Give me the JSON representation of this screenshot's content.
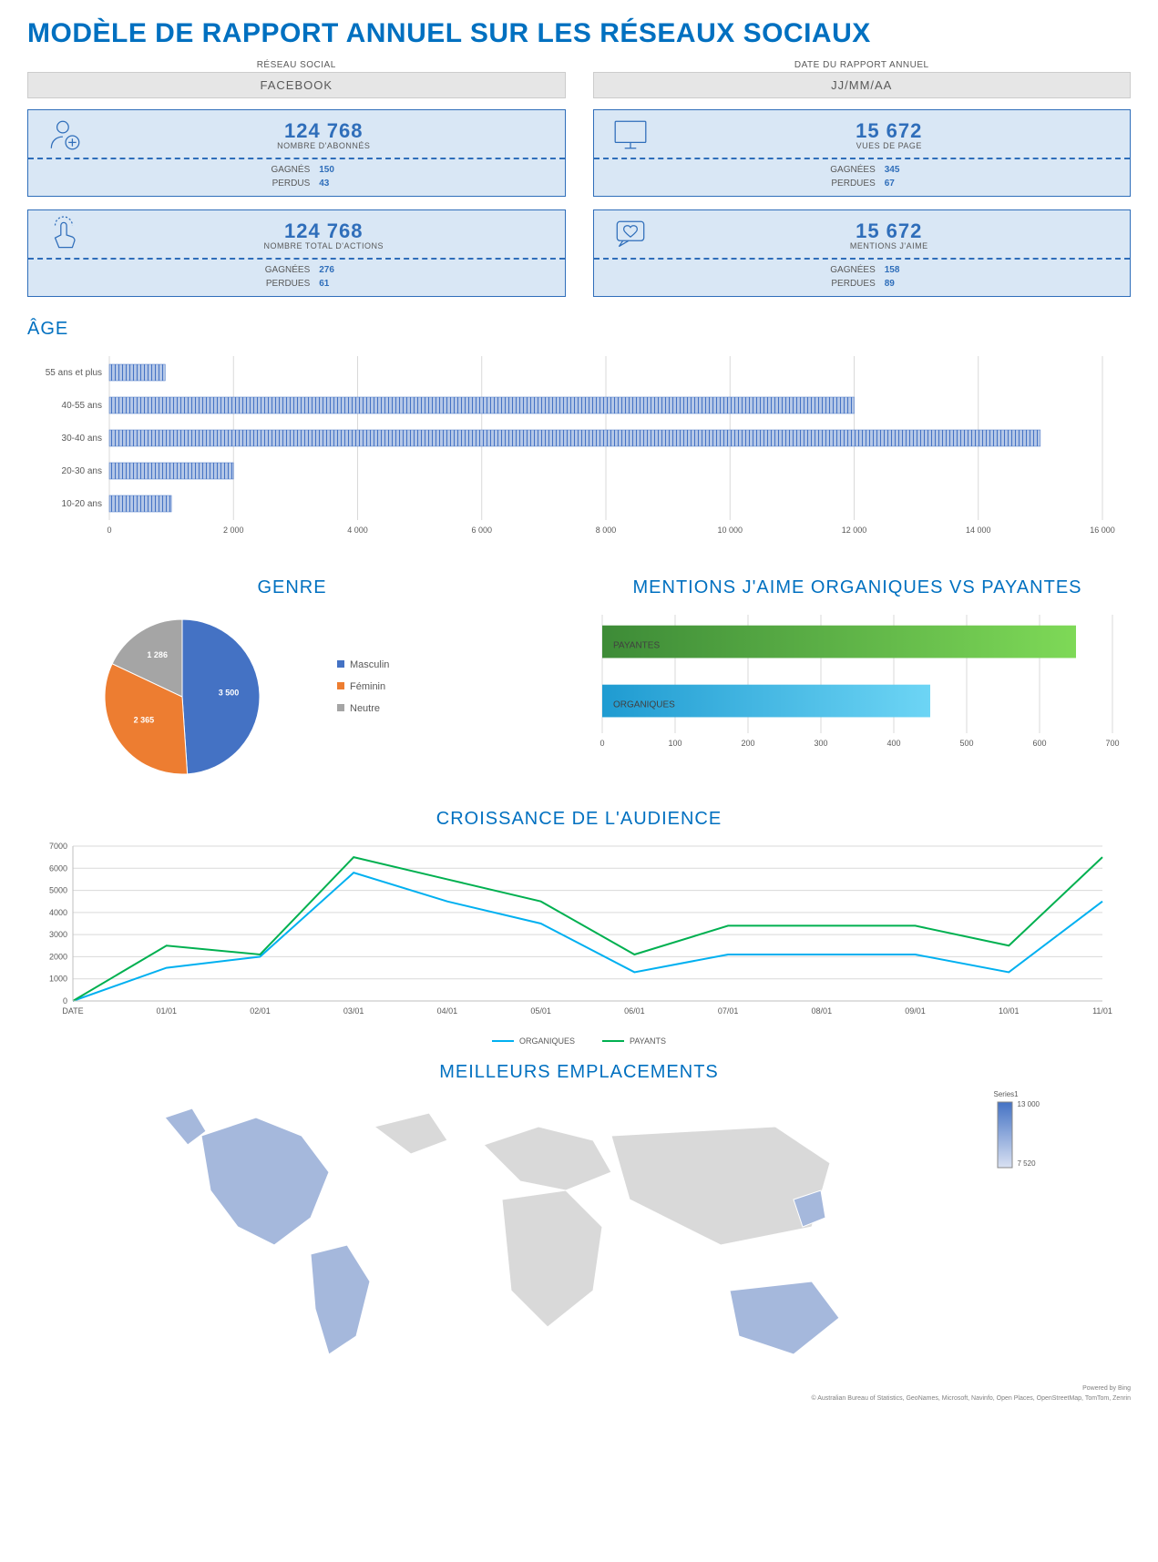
{
  "title": "MODÈLE DE RAPPORT ANNUEL SUR LES RÉSEAUX SOCIAUX",
  "header": {
    "network_label": "RÉSEAU SOCIAL",
    "network_value": "FACEBOOK",
    "date_label": "DATE DU RAPPORT ANNUEL",
    "date_value": "JJ/MM/AA"
  },
  "metrics": {
    "followers": {
      "value": "124 768",
      "label": "NOMBRE D'ABONNÉS",
      "gained_label": "GAGNÉS",
      "gained": "150",
      "lost_label": "PERDUS",
      "lost": "43"
    },
    "pageviews": {
      "value": "15 672",
      "label": "VUES DE PAGE",
      "gained_label": "GAGNÉES",
      "gained": "345",
      "lost_label": "PERDUES",
      "lost": "67"
    },
    "actions": {
      "value": "124 768",
      "label": "NOMBRE TOTAL D'ACTIONS",
      "gained_label": "GAGNÉES",
      "gained": "276",
      "lost_label": "PERDUES",
      "lost": "61"
    },
    "likes": {
      "value": "15 672",
      "label": "MENTIONS J'AIME",
      "gained_label": "GAGNÉES",
      "gained": "158",
      "lost_label": "PERDUES",
      "lost": "89"
    }
  },
  "age_chart": {
    "title": "ÂGE",
    "type": "bar-horizontal",
    "categories": [
      "55 ans et plus",
      "40-55 ans",
      "30-40 ans",
      "20-30 ans",
      "10-20 ans"
    ],
    "values": [
      900,
      12000,
      15000,
      2000,
      1000
    ],
    "bar_color": "#4472c4",
    "background_color": "#ffffff",
    "grid_color": "#d9d9d9",
    "xlim": [
      0,
      16000
    ],
    "xtick_step": 2000,
    "xtick_labels": [
      "0",
      "2 000",
      "4 000",
      "6 000",
      "8 000",
      "10 000",
      "12 000",
      "14 000",
      "16 000"
    ],
    "label_fontsize": 10
  },
  "gender_chart": {
    "title": "GENRE",
    "type": "pie",
    "slices": [
      {
        "label": "Masculin",
        "value": 3500,
        "color": "#4472c4",
        "value_text": "3 500"
      },
      {
        "label": "Féminin",
        "value": 2365,
        "color": "#ed7d31",
        "value_text": "2 365"
      },
      {
        "label": "Neutre",
        "value": 1286,
        "color": "#a5a5a5",
        "value_text": "1 286"
      }
    ],
    "legend_bullets": [
      "■",
      "■",
      "■"
    ]
  },
  "likes_chart": {
    "title": "MENTIONS J'AIME ORGANIQUES VS PAYANTES",
    "type": "bar-horizontal",
    "categories": [
      "PAYANTES",
      "ORGANIQUES"
    ],
    "values": [
      650,
      450
    ],
    "bar_gradients": [
      {
        "from": "#3d8b37",
        "to": "#7ed957"
      },
      {
        "from": "#1f9bd1",
        "to": "#6dd5f5"
      }
    ],
    "xlim": [
      0,
      700
    ],
    "xtick_step": 100,
    "xtick_labels": [
      "0",
      "100",
      "200",
      "300",
      "400",
      "500",
      "600",
      "700"
    ],
    "grid_color": "#d9d9d9"
  },
  "growth_chart": {
    "title": "CROISSANCE DE L'AUDIENCE",
    "type": "line",
    "x_labels": [
      "DATE",
      "01/01",
      "02/01",
      "03/01",
      "04/01",
      "05/01",
      "06/01",
      "07/01",
      "08/01",
      "09/01",
      "10/01",
      "11/01"
    ],
    "ylim": [
      0,
      7000
    ],
    "ytick_step": 1000,
    "series": [
      {
        "name": "ORGANIQUES",
        "color": "#00b0f0",
        "values": [
          0,
          1500,
          2000,
          5800,
          4500,
          3500,
          1300,
          2100,
          2100,
          2100,
          1300,
          4500
        ]
      },
      {
        "name": "PAYANTS",
        "color": "#00b050",
        "values": [
          0,
          2500,
          2100,
          6500,
          5500,
          4500,
          2100,
          3400,
          3400,
          3400,
          2500,
          6500
        ]
      }
    ],
    "grid_color": "#e0e0e0"
  },
  "map_section": {
    "title": "MEILLEURS EMPLACEMENTS",
    "legend_title": "Series1",
    "legend_max": "13 000",
    "legend_min": "7 520",
    "highlight_color": "#a5b8dc",
    "base_color": "#d9d9d9",
    "attribution_line1": "Powered by Bing",
    "attribution_line2": "© Australian Bureau of Statistics, GeoNames, Microsoft, Navinfo, Open Places, OpenStreetMap, TomTom, Zenrin"
  }
}
